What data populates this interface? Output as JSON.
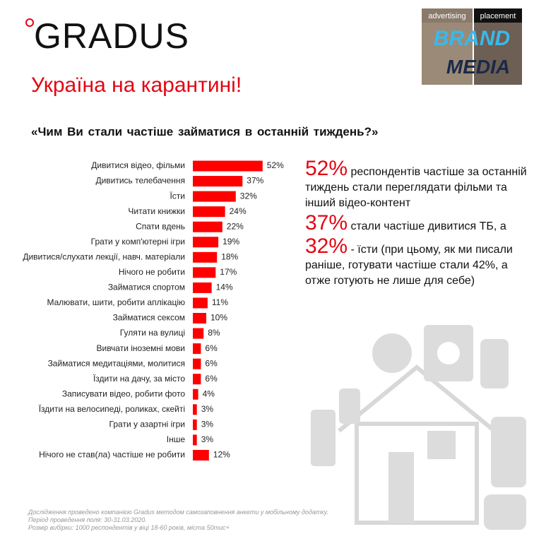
{
  "header": {
    "logo": "GRADUS",
    "partner": {
      "top_left": "advertising",
      "top_right": "placement",
      "line1": "BRAND",
      "line2": "MEDIA"
    }
  },
  "title": "Україна на карантині!",
  "question": "«Чим Ви стали частіше займатися в останній тиждень?»",
  "chart_data": {
    "type": "bar",
    "orientation": "horizontal",
    "color": "#ff0000",
    "categories": [
      "Дивитися відео, фільми",
      "Дивитись телебачення",
      "Їсти",
      "Читати книжки",
      "Спати вдень",
      "Грати у комп'ютерні ігри",
      "Дивитися/слухати лекції, навч. матеріали",
      "Нічого не робити",
      "Займатися спортом",
      "Малювати, шити, робити аплікацію",
      "Займатися сексом",
      "Гуляти на вулиці",
      "Вивчати іноземні мови",
      "Займатися медитаціями, молитися",
      "Їздити на дачу, за місто",
      "Записувати відео, робити фото",
      "Їздити на велосипеді, роликах, скейті",
      "Грати у азартні ігри",
      "Інше",
      "Нічого не став(ла) частіше не робити"
    ],
    "values": [
      52,
      37,
      32,
      24,
      22,
      19,
      18,
      17,
      14,
      11,
      10,
      8,
      6,
      6,
      6,
      4,
      3,
      3,
      3,
      12
    ],
    "value_labels": [
      "52%",
      "37%",
      "32%",
      "24%",
      "22%",
      "19%",
      "18%",
      "17%",
      "14%",
      "11%",
      "10%",
      "8%",
      "6%",
      "6%",
      "6%",
      "4%",
      "3%",
      "3%",
      "3%",
      "12%"
    ]
  },
  "commentary": [
    {
      "figure": "52%",
      "text": "респондентів частіше за останній тиждень стали переглядати фільми та інший відео-контент"
    },
    {
      "figure": "37%",
      "text": "стали частіше дивитися ТБ, а"
    },
    {
      "figure": "32%",
      "text": "- їсти (при цьому, як ми писали раніше, готувати частіше стали 42%, а отже готують не лише для себе)"
    }
  ],
  "footnote": [
    "Дослідження проведено компанією Gradus методом самозаповнення анкети у мобільному додатку.",
    "Період проведення поля: 30-31.03.2020.",
    "Розмір вибірки: 1000 респондентів у віці 18-60 років, міста 50тис+"
  ]
}
